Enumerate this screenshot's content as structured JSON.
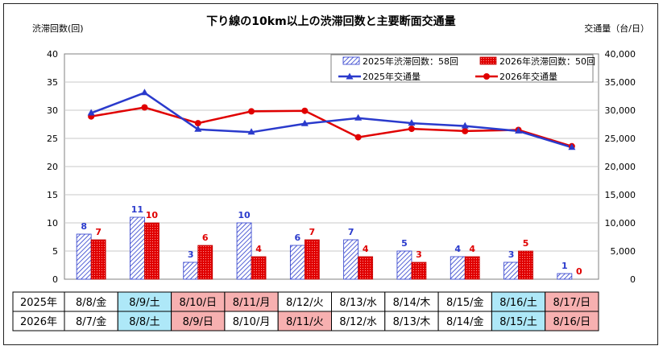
{
  "chart_data": {
    "type": "bar+line",
    "title": "下り線の10km以上の渋滞回数と主要断面交通量",
    "ylabel_left": "渋滞回数(回)",
    "ylabel_right": "交通量（台/日）",
    "ylim_left": [
      0,
      40
    ],
    "ylim_right": [
      0,
      40000
    ],
    "yticks_left": [
      "0",
      "5",
      "10",
      "15",
      "20",
      "25",
      "30",
      "35",
      "40"
    ],
    "yticks_right": [
      "0",
      "5,000",
      "10,000",
      "15,000",
      "20,000",
      "25,000",
      "30,000",
      "35,000",
      "40,000"
    ],
    "legend": {
      "bar2025": "2025年渋滞回数：58回",
      "bar2026": "2026年渋滞回数：50回",
      "line2025": "2025年交通量",
      "line2026": "2026年交通量"
    },
    "bars_2025": [
      8,
      11,
      3,
      10,
      6,
      7,
      5,
      4,
      3,
      1
    ],
    "bars_2026": [
      7,
      10,
      6,
      4,
      7,
      4,
      3,
      4,
      5,
      0
    ],
    "traffic_2025": [
      29500,
      33100,
      26600,
      26100,
      27600,
      28600,
      27700,
      27200,
      26300,
      23400
    ],
    "traffic_2026": [
      28900,
      30500,
      27700,
      29800,
      29900,
      25200,
      26700,
      26300,
      26500,
      23600
    ],
    "colors": {
      "blue": "#2a3acc",
      "red": "#e00000",
      "sat_bg": "#aee8f8",
      "hol_bg": "#f7b0b0"
    }
  },
  "table": {
    "row_labels": [
      "2025年",
      "2026年"
    ],
    "rows": [
      [
        {
          "text": "8/8/金",
          "kind": "weekday"
        },
        {
          "text": "8/9/土",
          "kind": "sat"
        },
        {
          "text": "8/10/日",
          "kind": "hol"
        },
        {
          "text": "8/11/月",
          "kind": "hol"
        },
        {
          "text": "8/12/火",
          "kind": "weekday"
        },
        {
          "text": "8/13/水",
          "kind": "weekday"
        },
        {
          "text": "8/14/木",
          "kind": "weekday"
        },
        {
          "text": "8/15/金",
          "kind": "weekday"
        },
        {
          "text": "8/16/土",
          "kind": "sat"
        },
        {
          "text": "8/17/日",
          "kind": "hol"
        }
      ],
      [
        {
          "text": "8/7/金",
          "kind": "weekday"
        },
        {
          "text": "8/8/土",
          "kind": "sat"
        },
        {
          "text": "8/9/日",
          "kind": "hol"
        },
        {
          "text": "8/10/月",
          "kind": "weekday"
        },
        {
          "text": "8/11/火",
          "kind": "hol"
        },
        {
          "text": "8/12/水",
          "kind": "weekday"
        },
        {
          "text": "8/13/木",
          "kind": "weekday"
        },
        {
          "text": "8/14/金",
          "kind": "weekday"
        },
        {
          "text": "8/15/土",
          "kind": "sat"
        },
        {
          "text": "8/16/日",
          "kind": "hol"
        }
      ]
    ]
  }
}
